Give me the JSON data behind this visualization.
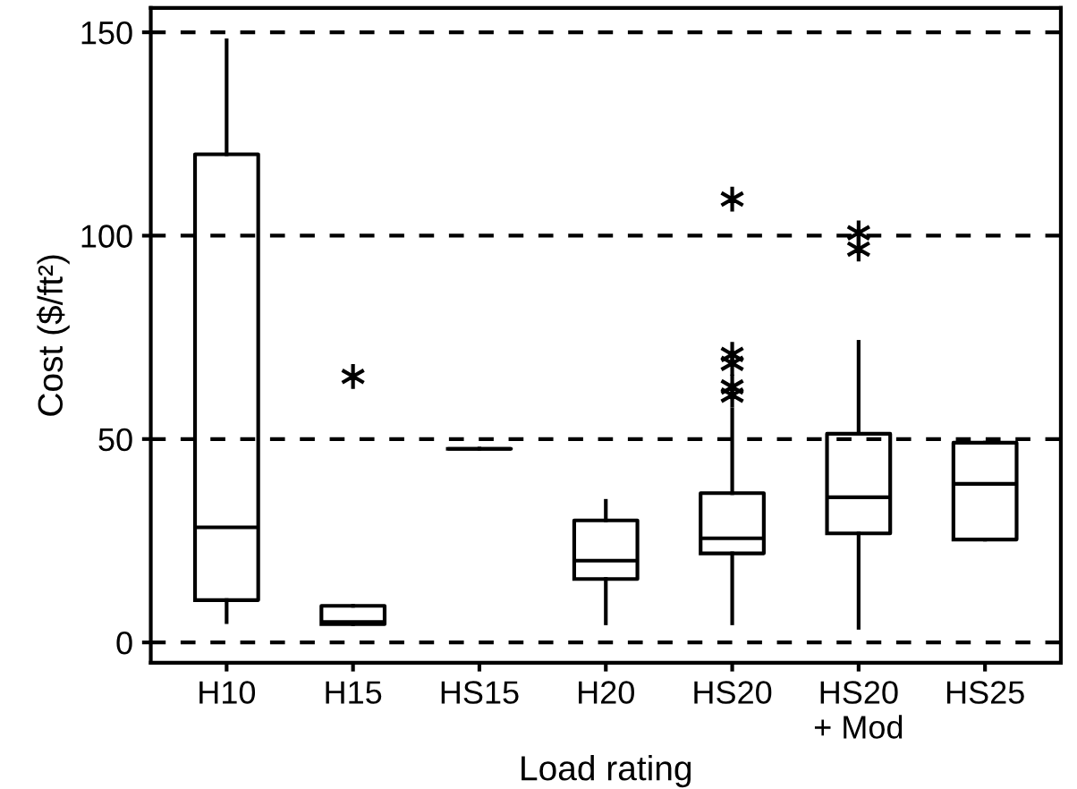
{
  "chart_data": {
    "type": "box",
    "xlabel": "Load rating",
    "ylabel": "Cost ($/ft²)",
    "categories": [
      "H10",
      "H15",
      "HS15",
      "H20",
      "HS20",
      "HS20\n+ Mod",
      "HS25"
    ],
    "boxes": [
      {
        "low": 5,
        "q1": 10.4,
        "median": 28.3,
        "q3": 120,
        "high": 148
      },
      {
        "low": 4.5,
        "q1": 4.5,
        "median": 5,
        "q3": 9,
        "high": 9,
        "outliers": [
          65.4
        ]
      },
      {
        "low": 47.6,
        "q1": 47.6,
        "median": 47.6,
        "q3": 47.6,
        "high": 47.6
      },
      {
        "low": 4.7,
        "q1": 15.6,
        "median": 20.1,
        "q3": 30,
        "high": 34.8
      },
      {
        "low": 4.7,
        "q1": 21.9,
        "median": 25.6,
        "q3": 36.7,
        "high": 57.3,
        "outliers": [
          109,
          70.8,
          68.6,
          62.8,
          60.8
        ]
      },
      {
        "low": 3.6,
        "q1": 26.8,
        "median": 35.7,
        "q3": 51.3,
        "high": 73.9,
        "outliers": [
          100.7,
          96.7
        ]
      },
      {
        "low": 25.3,
        "q1": 25.3,
        "median": 39,
        "q3": 49.1,
        "high": 49.1
      }
    ],
    "ylim": [
      -5,
      156
    ],
    "yticks": [
      0,
      50,
      100,
      150
    ],
    "grid": "y",
    "marker": "star"
  }
}
